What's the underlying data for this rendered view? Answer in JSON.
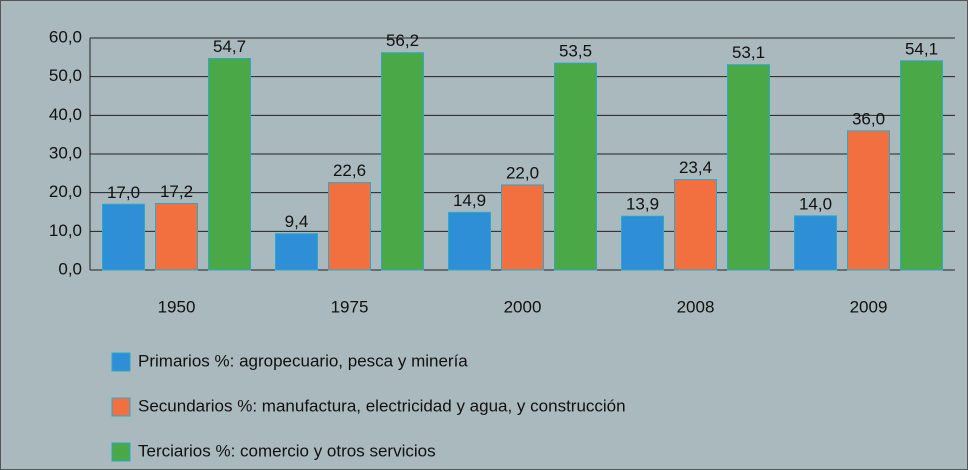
{
  "chart_data": {
    "type": "bar",
    "categories": [
      "1950",
      "1975",
      "2000",
      "2008",
      "2009"
    ],
    "series": [
      {
        "name": "Primarios %: agropecuario, pesca y minería",
        "color": "#2f8fd6",
        "values": [
          17.0,
          9.4,
          14.9,
          13.9,
          14.0
        ],
        "value_labels": [
          "17,0",
          "9,4",
          "14,9",
          "13,9",
          "14,0"
        ]
      },
      {
        "name": "Secundarios %: manufactura, electricidad y agua, y construcción",
        "color": "#f2703f",
        "values": [
          17.2,
          22.6,
          22.0,
          23.4,
          36.0
        ],
        "value_labels": [
          "17,2",
          "22,6",
          "22,0",
          "23,4",
          "36,0"
        ]
      },
      {
        "name": "Terciarios %: comercio y otros servicios",
        "color": "#4aa846",
        "values": [
          54.7,
          56.2,
          53.5,
          53.1,
          54.1
        ],
        "value_labels": [
          "54,7",
          "56,2",
          "53,5",
          "53,1",
          "54,1"
        ]
      }
    ],
    "ylim": [
      0,
      60
    ],
    "yticks": [
      {
        "value": 0,
        "label": "0,0"
      },
      {
        "value": 10,
        "label": "10,0"
      },
      {
        "value": 20,
        "label": "20,0"
      },
      {
        "value": 30,
        "label": "30,0"
      },
      {
        "value": 40,
        "label": "40,0"
      },
      {
        "value": 50,
        "label": "50,0"
      },
      {
        "value": 60,
        "label": "60,0"
      }
    ],
    "grid": true
  }
}
